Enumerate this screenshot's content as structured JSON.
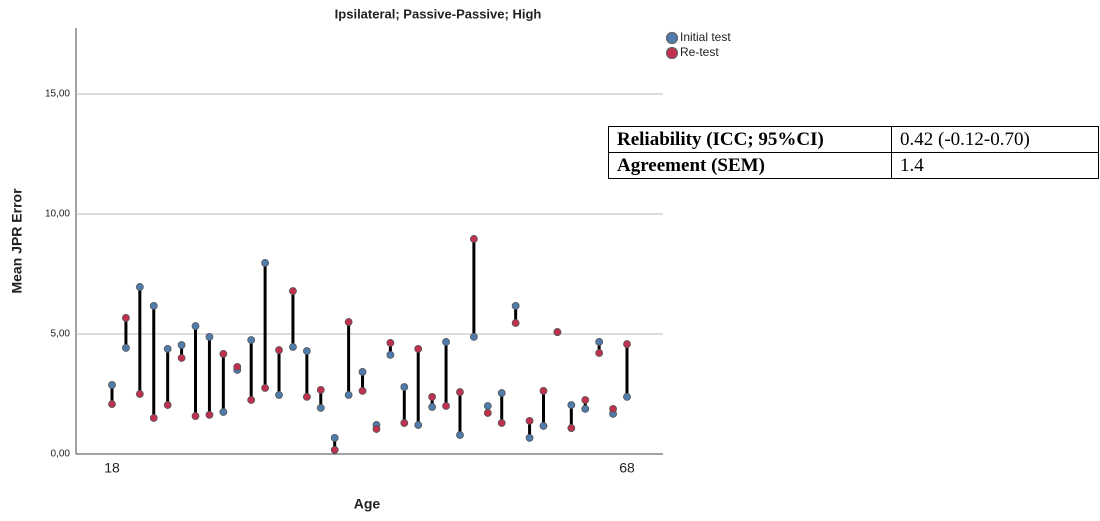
{
  "chart_data": {
    "type": "dotpair",
    "title": "Ipsilateral; Passive-Passive; High",
    "x_label": "Age",
    "y_label": "Mean JPR Error",
    "categories": [
      "18",
      null,
      null,
      null,
      null,
      null,
      null,
      null,
      null,
      null,
      null,
      null,
      null,
      null,
      null,
      null,
      null,
      null,
      null,
      null,
      null,
      null,
      null,
      null,
      null,
      null,
      null,
      null,
      null,
      null,
      null,
      null,
      null,
      null,
      null,
      null,
      null,
      "68"
    ],
    "series": [
      {
        "name": "Initial test",
        "color": "#4f7bad",
        "values": [
          2.88,
          4.42,
          6.96,
          6.17,
          4.38,
          4.54,
          5.33,
          4.88,
          1.75,
          3.5,
          4.75,
          7.96,
          2.46,
          4.46,
          4.29,
          1.92,
          0.67,
          2.46,
          3.42,
          1.21,
          4.13,
          2.79,
          1.21,
          1.96,
          4.67,
          0.79,
          4.88,
          2.0,
          2.54,
          6.17,
          0.67,
          1.17,
          5.08,
          2.04,
          1.88,
          4.67,
          1.67,
          2.38
        ]
      },
      {
        "name": "Re-test",
        "color": "#c0304f",
        "values": [
          2.08,
          5.67,
          2.5,
          1.5,
          2.04,
          4.0,
          1.58,
          1.63,
          4.17,
          3.63,
          2.25,
          2.75,
          4.33,
          6.79,
          2.38,
          2.67,
          0.17,
          5.5,
          2.63,
          1.04,
          4.63,
          1.29,
          4.38,
          2.38,
          2.0,
          2.58,
          8.96,
          1.71,
          1.29,
          5.46,
          1.38,
          2.63,
          5.08,
          1.08,
          2.25,
          4.21,
          1.88,
          4.58
        ]
      }
    ],
    "ylim": [
      0,
      17.75
    ],
    "yticks": [
      {
        "value": 0,
        "label": "0,00"
      },
      {
        "value": 5,
        "label": "5,00"
      },
      {
        "value": 10,
        "label": "10,00"
      },
      {
        "value": 15,
        "label": "15,00"
      }
    ],
    "grid": true,
    "legend": "top-right",
    "connector_color": "#000000"
  },
  "table": {
    "rows": [
      [
        "Reliability (ICC; 95%CI)",
        "0.42 (-0.12-0.70)"
      ],
      [
        "Agreement (SEM)",
        "1.4"
      ]
    ]
  }
}
